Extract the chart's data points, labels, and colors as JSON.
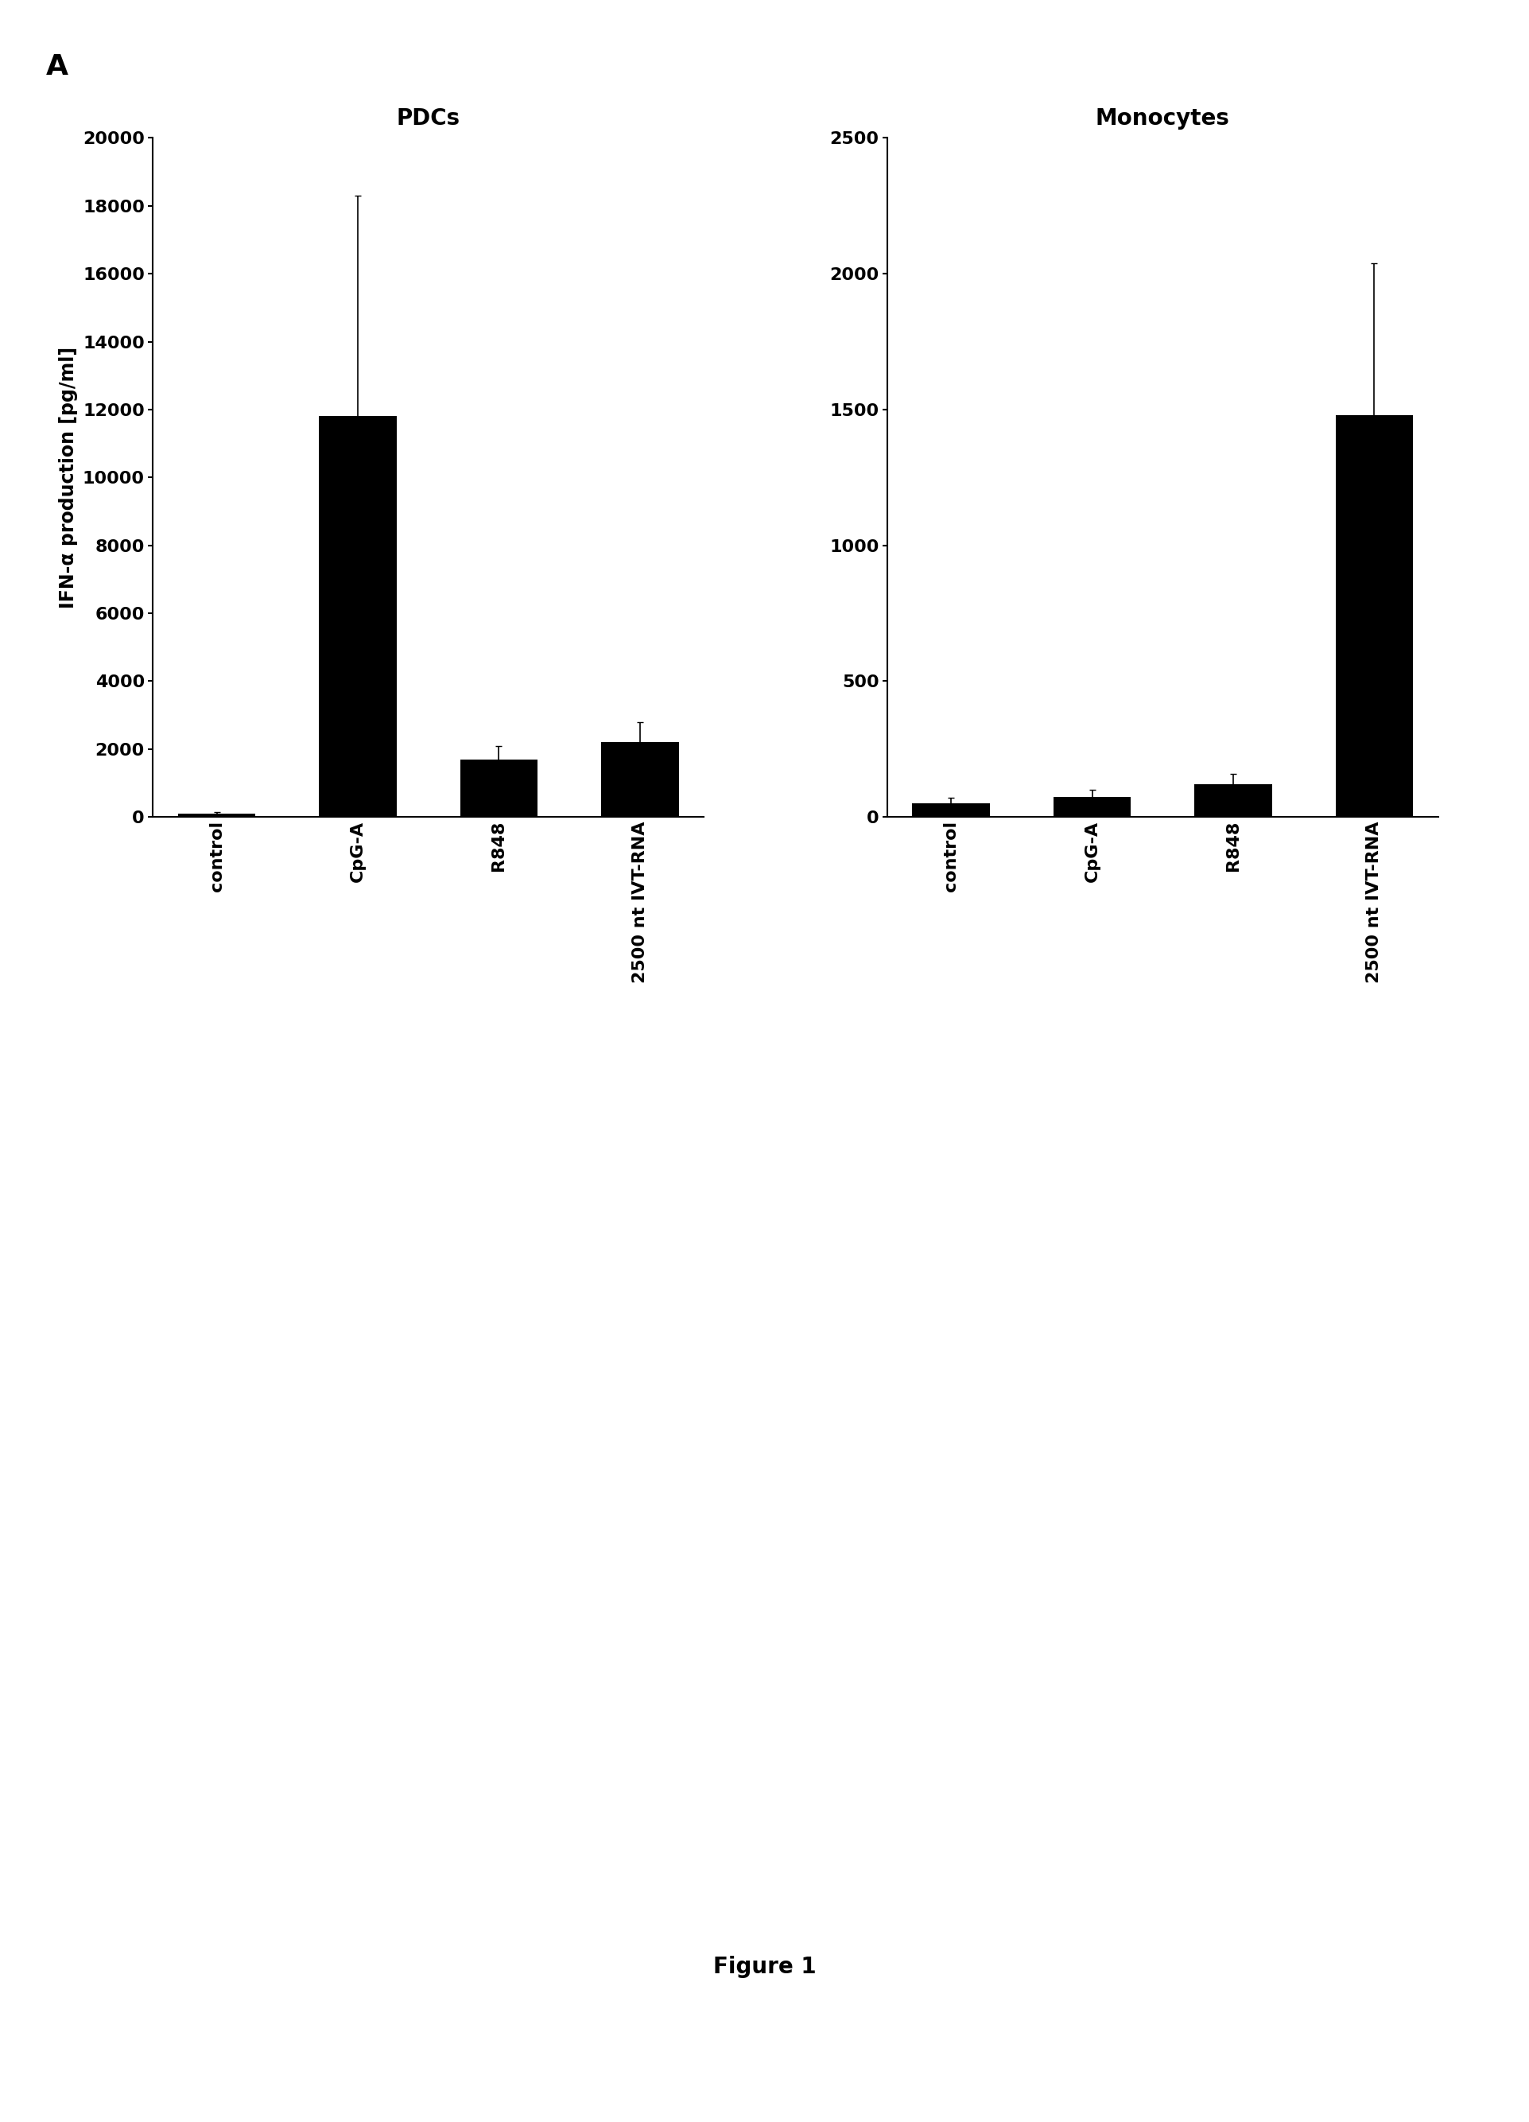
{
  "panel_label": "A",
  "figure_label": "Figure 1",
  "pdcs": {
    "title": "PDCs",
    "categories": [
      "control",
      "CpG-A",
      "R848",
      "2500 nt IVT-RNA"
    ],
    "values": [
      100,
      11800,
      1700,
      2200
    ],
    "errors": [
      50,
      6500,
      400,
      600
    ],
    "ylim": [
      0,
      20000
    ],
    "yticks": [
      0,
      2000,
      4000,
      6000,
      8000,
      10000,
      12000,
      14000,
      16000,
      18000,
      20000
    ],
    "ylabel": "IFN-α production [pg/ml]"
  },
  "monocytes": {
    "title": "Monocytes",
    "categories": [
      "control",
      "CpG-A",
      "R848",
      "2500 nt IVT-RNA"
    ],
    "values": [
      50,
      75,
      120,
      1480
    ],
    "errors": [
      20,
      25,
      40,
      560
    ],
    "ylim": [
      0,
      2500
    ],
    "yticks": [
      0,
      500,
      1000,
      1500,
      2000,
      2500
    ]
  },
  "bar_color": "#000000",
  "bar_width": 0.55,
  "background_color": "#ffffff",
  "title_fontsize": 20,
  "axis_label_fontsize": 17,
  "tick_fontsize": 16,
  "panel_label_fontsize": 26,
  "figure_label_fontsize": 20,
  "figure_label_fontweight": "bold"
}
